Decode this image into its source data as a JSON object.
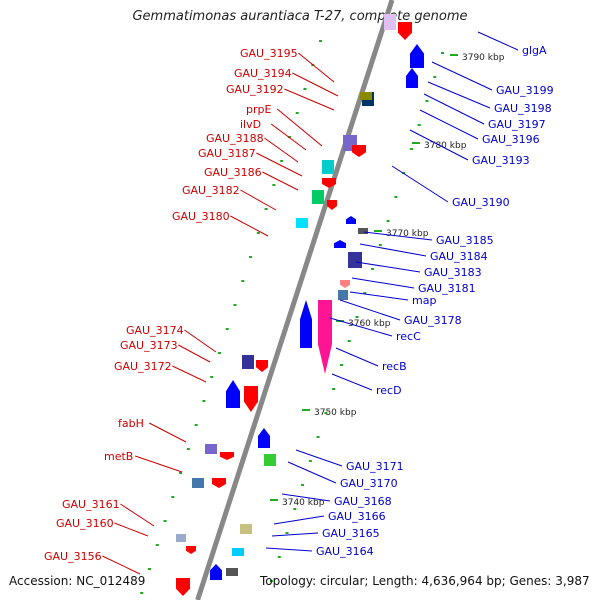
{
  "figure": {
    "title": "Gemmatimonas aurantiaca T-27, complete genome",
    "accession": "Accession: NC_012489",
    "summary": "Topology: circular; Length: 4,636,964 bp; Genes: 3,987"
  },
  "kbp_marks": [
    "3790 kbp",
    "3780 kbp",
    "3770 kbp",
    "3760 kbp",
    "3750 kbp",
    "3740 kbp"
  ],
  "left_genes": [
    "GAU_3195",
    "GAU_3194",
    "GAU_3192",
    "prpE",
    "ilvD",
    "GAU_3188",
    "GAU_3187",
    "GAU_3186",
    "GAU_3182",
    "GAU_3180",
    "GAU_3174",
    "GAU_3173",
    "GAU_3172",
    "fabH",
    "metB",
    "GAU_3161",
    "GAU_3160",
    "GAU_3156"
  ],
  "right_genes": [
    "glgA",
    "GAU_3199",
    "GAU_3198",
    "GAU_3197",
    "GAU_3196",
    "GAU_3193",
    "GAU_3190",
    "GAU_3185",
    "GAU_3184",
    "GAU_3183",
    "GAU_3181",
    "map",
    "GAU_3178",
    "recC",
    "recB",
    "recD",
    "GAU_3171",
    "GAU_3170",
    "GAU_3168",
    "GAU_3166",
    "GAU_3165",
    "GAU_3164"
  ],
  "colors": {
    "forward": "#ff0000",
    "reverse": "#0000ff",
    "label_forward": "#cc0000",
    "label_reverse": "#0000cc",
    "axis": "#888888",
    "tick": "#22aa22"
  }
}
